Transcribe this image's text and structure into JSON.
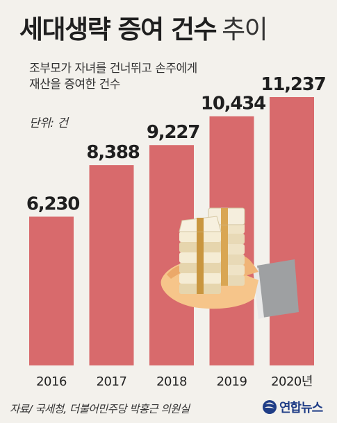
{
  "title": {
    "main": "세대생략 증여 건수",
    "light": "추이"
  },
  "subtitle": {
    "line1": "조부모가 자녀를 건너뛰고 손주에게",
    "line2": "재산을 증여한 건수"
  },
  "unit": "단위: 건",
  "source": "자료/ 국세청, 더불어민주당 박홍근 의원실",
  "logo": {
    "text": "연합뉴스",
    "icon": "yonhap-globe-icon"
  },
  "colors": {
    "bar": "#d86a6c",
    "background": "#f3f1ec",
    "logo": "#1f3d86"
  },
  "illustration": "hand-holding-money-stack",
  "chart_data": {
    "type": "bar",
    "categories": [
      "2016",
      "2017",
      "2018",
      "2019",
      "2020년"
    ],
    "values": [
      6230,
      8388,
      9227,
      10434,
      11237
    ],
    "value_labels": [
      "6,230",
      "8,388",
      "9,227",
      "10,434",
      "11,237"
    ],
    "ylim": [
      0,
      11237
    ],
    "grid": false,
    "legend": "none"
  }
}
